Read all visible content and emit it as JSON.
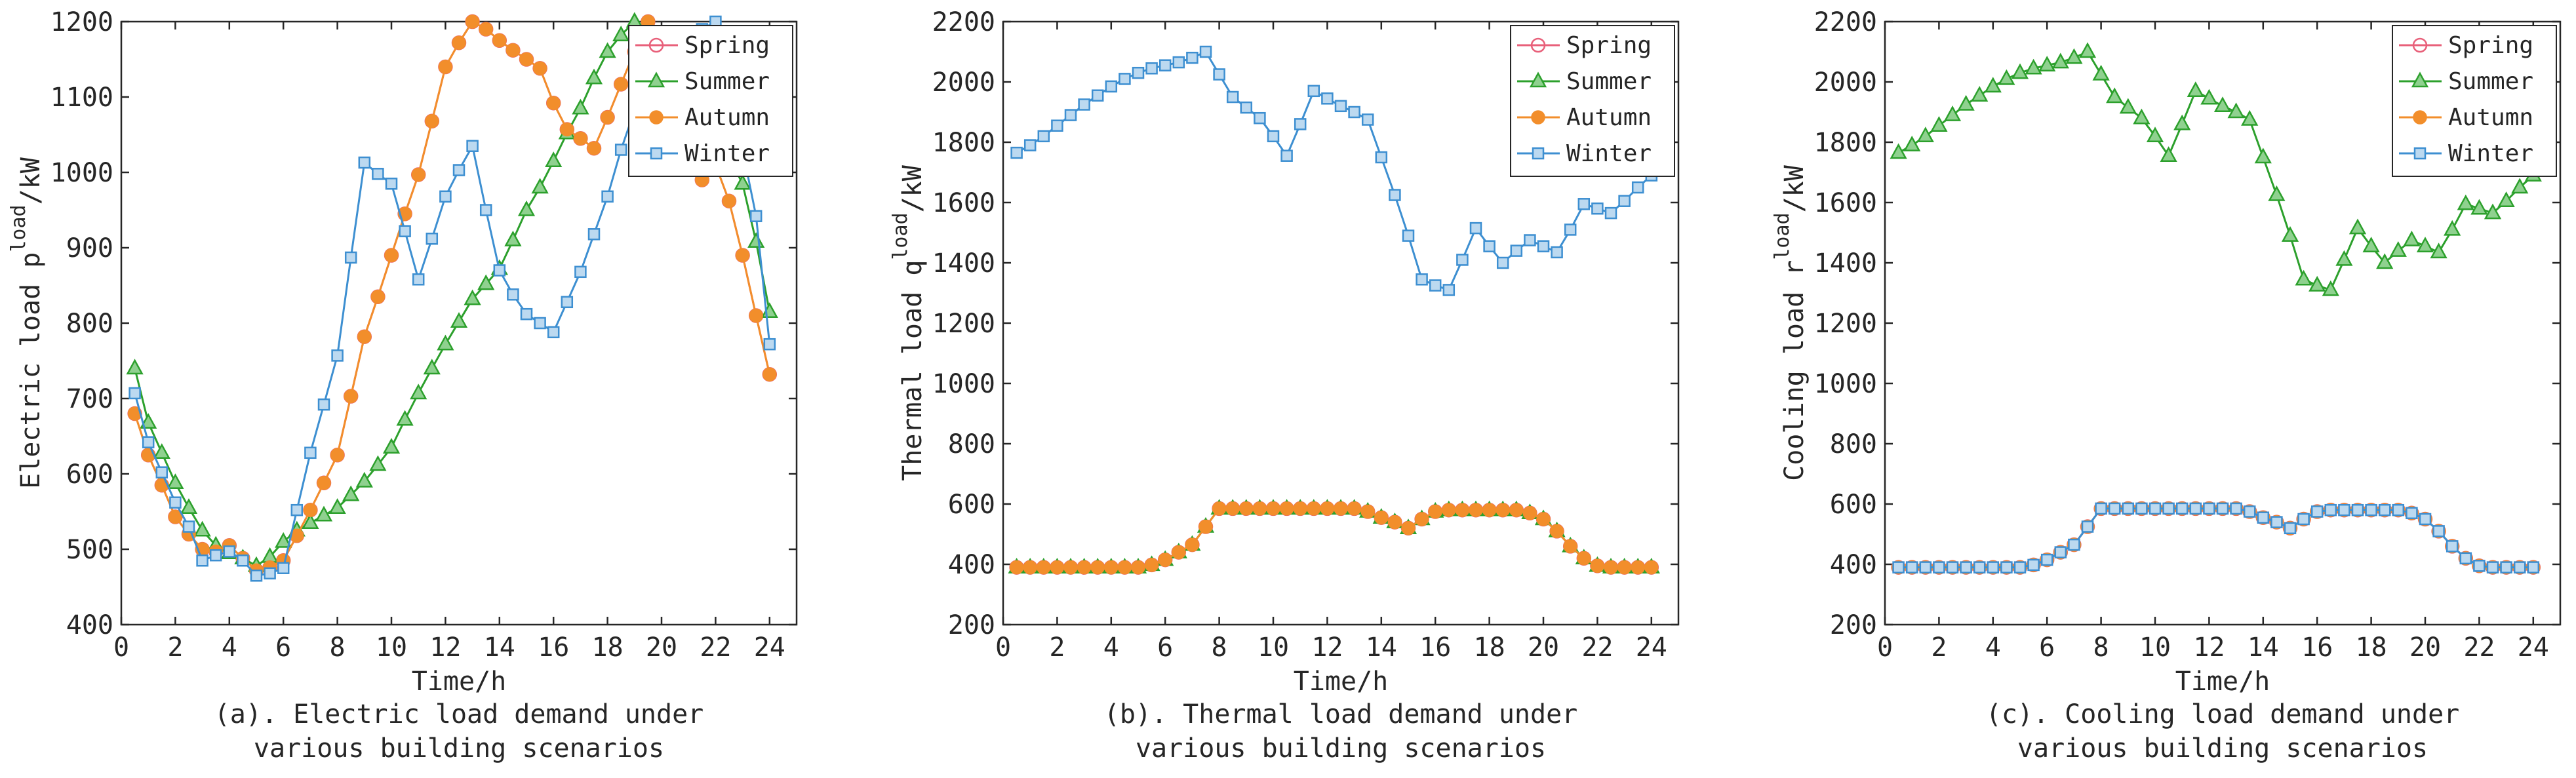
{
  "chart_data": [
    {
      "id": "a",
      "type": "line",
      "xlabel": "Time/h",
      "ylabel": "Electric load p",
      "ylabel_sup": "load",
      "ylabel_unit": "/kW",
      "xlim": [
        0,
        25
      ],
      "ylim": [
        400,
        1200
      ],
      "xticks": [
        0,
        2,
        4,
        6,
        8,
        10,
        12,
        14,
        16,
        18,
        20,
        22,
        24
      ],
      "yticks": [
        400,
        500,
        600,
        700,
        800,
        900,
        1000,
        1100,
        1200
      ],
      "caption_line1": "(a). Electric load demand under",
      "caption_line2": "various building scenarios",
      "legend_position": "top-right",
      "x": [
        0.5,
        1,
        1.5,
        2,
        2.5,
        3,
        3.5,
        4,
        4.5,
        5,
        5.5,
        6,
        6.5,
        7,
        7.5,
        8,
        8.5,
        9,
        9.5,
        10,
        10.5,
        11,
        11.5,
        12,
        12.5,
        13,
        13.5,
        14,
        14.5,
        15,
        15.5,
        16,
        16.5,
        17,
        17.5,
        18,
        18.5,
        19,
        19.5,
        20,
        20.5,
        21,
        21.5,
        22,
        22.5,
        23,
        23.5,
        24
      ],
      "series": [
        {
          "name": "Spring",
          "color": "#e8607a",
          "marker": "circle",
          "values": [
            680,
            625,
            585,
            543,
            520,
            500,
            497,
            505,
            488,
            472,
            476,
            485,
            518,
            552,
            588,
            625,
            703,
            782,
            835,
            890,
            945,
            997,
            1068,
            1140,
            1172,
            1200,
            1190,
            1175,
            1162,
            1150,
            1138,
            1092,
            1057,
            1045,
            1032,
            1073,
            1117,
            1160,
            1200,
            1130,
            1055,
            1010,
            990,
            1010,
            962,
            890,
            810,
            732
          ]
        },
        {
          "name": "Summer",
          "color": "#2ca02c",
          "marker": "triangle",
          "values": [
            740,
            668,
            628,
            588,
            555,
            525,
            505,
            495,
            488,
            478,
            490,
            510,
            525,
            535,
            545,
            555,
            572,
            590,
            612,
            635,
            672,
            707,
            740,
            772,
            802,
            832,
            852,
            872,
            910,
            950,
            980,
            1015,
            1052,
            1085,
            1125,
            1160,
            1182,
            1200,
            1185,
            1150,
            1108,
            1080,
            1052,
            1040,
            1020,
            985,
            908,
            815
          ]
        },
        {
          "name": "Autumn",
          "color": "#f28e2b",
          "marker": "star",
          "values": [
            680,
            625,
            585,
            543,
            520,
            500,
            497,
            505,
            488,
            472,
            476,
            485,
            518,
            552,
            588,
            625,
            703,
            782,
            835,
            890,
            945,
            997,
            1068,
            1140,
            1172,
            1200,
            1190,
            1175,
            1162,
            1150,
            1138,
            1092,
            1057,
            1045,
            1032,
            1073,
            1117,
            1160,
            1200,
            1130,
            1055,
            1010,
            990,
            1010,
            962,
            890,
            810,
            732
          ]
        },
        {
          "name": "Winter",
          "color": "#3d8fd1",
          "marker": "square",
          "values": [
            707,
            642,
            602,
            562,
            530,
            485,
            492,
            497,
            485,
            465,
            468,
            475,
            552,
            628,
            692,
            757,
            887,
            1013,
            998,
            985,
            922,
            858,
            912,
            968,
            1003,
            1035,
            950,
            870,
            838,
            812,
            800,
            788,
            828,
            868,
            918,
            968,
            1030,
            1082,
            1135,
            1162,
            1168,
            1175,
            1190,
            1200,
            1075,
            1030,
            942,
            772
          ]
        }
      ]
    },
    {
      "id": "b",
      "type": "line",
      "xlabel": "Time/h",
      "ylabel": "Thermal load q",
      "ylabel_sup": "load",
      "ylabel_unit": "/kW",
      "xlim": [
        0,
        25
      ],
      "ylim": [
        200,
        2200
      ],
      "xticks": [
        0,
        2,
        4,
        6,
        8,
        10,
        12,
        14,
        16,
        18,
        20,
        22,
        24
      ],
      "yticks": [
        200,
        400,
        600,
        800,
        1000,
        1200,
        1400,
        1600,
        1800,
        2000,
        2200
      ],
      "caption_line1": "(b). Thermal load demand under",
      "caption_line2": "various building scenarios",
      "legend_position": "top-right",
      "x": [
        0.5,
        1,
        1.5,
        2,
        2.5,
        3,
        3.5,
        4,
        4.5,
        5,
        5.5,
        6,
        6.5,
        7,
        7.5,
        8,
        8.5,
        9,
        9.5,
        10,
        10.5,
        11,
        11.5,
        12,
        12.5,
        13,
        13.5,
        14,
        14.5,
        15,
        15.5,
        16,
        16.5,
        17,
        17.5,
        18,
        18.5,
        19,
        19.5,
        20,
        20.5,
        21,
        21.5,
        22,
        22.5,
        23,
        23.5,
        24
      ],
      "series": [
        {
          "name": "Spring",
          "color": "#e8607a",
          "marker": "circle",
          "values": [
            390,
            390,
            390,
            390,
            390,
            390,
            390,
            390,
            390,
            390,
            398,
            415,
            440,
            465,
            525,
            585,
            585,
            585,
            585,
            585,
            585,
            585,
            585,
            585,
            585,
            585,
            575,
            555,
            540,
            520,
            550,
            575,
            580,
            580,
            580,
            580,
            580,
            580,
            570,
            550,
            510,
            460,
            420,
            395,
            390,
            390,
            390,
            390
          ]
        },
        {
          "name": "Summer",
          "color": "#2ca02c",
          "marker": "triangle",
          "values": [
            390,
            390,
            390,
            390,
            390,
            390,
            390,
            390,
            390,
            390,
            398,
            415,
            440,
            465,
            525,
            585,
            585,
            585,
            585,
            585,
            585,
            585,
            585,
            585,
            585,
            585,
            575,
            555,
            540,
            520,
            550,
            575,
            580,
            580,
            580,
            580,
            580,
            580,
            570,
            550,
            510,
            460,
            420,
            395,
            390,
            390,
            390,
            390
          ]
        },
        {
          "name": "Autumn",
          "color": "#f28e2b",
          "marker": "star",
          "values": [
            390,
            390,
            390,
            390,
            390,
            390,
            390,
            390,
            390,
            390,
            398,
            415,
            440,
            465,
            525,
            585,
            585,
            585,
            585,
            585,
            585,
            585,
            585,
            585,
            585,
            585,
            575,
            555,
            540,
            520,
            550,
            575,
            580,
            580,
            580,
            580,
            580,
            580,
            570,
            550,
            510,
            460,
            420,
            395,
            390,
            390,
            390,
            390
          ]
        },
        {
          "name": "Winter",
          "color": "#3d8fd1",
          "marker": "square",
          "values": [
            1765,
            1790,
            1820,
            1855,
            1890,
            1925,
            1955,
            1985,
            2010,
            2030,
            2045,
            2055,
            2065,
            2080,
            2100,
            2025,
            1950,
            1915,
            1880,
            1820,
            1755,
            1860,
            1970,
            1945,
            1920,
            1900,
            1875,
            1750,
            1625,
            1490,
            1345,
            1325,
            1310,
            1410,
            1515,
            1455,
            1400,
            1440,
            1475,
            1455,
            1435,
            1510,
            1595,
            1580,
            1565,
            1605,
            1650,
            1690
          ]
        }
      ]
    },
    {
      "id": "c",
      "type": "line",
      "xlabel": "Time/h",
      "ylabel": "Cooling load r",
      "ylabel_sup": "load",
      "ylabel_unit": "/kW",
      "xlim": [
        0,
        25
      ],
      "ylim": [
        200,
        2200
      ],
      "xticks": [
        0,
        2,
        4,
        6,
        8,
        10,
        12,
        14,
        16,
        18,
        20,
        22,
        24
      ],
      "yticks": [
        200,
        400,
        600,
        800,
        1000,
        1200,
        1400,
        1600,
        1800,
        2000,
        2200
      ],
      "caption_line1": "(c). Cooling load demand under",
      "caption_line2": "various building scenarios",
      "legend_position": "top-right",
      "x": [
        0.5,
        1,
        1.5,
        2,
        2.5,
        3,
        3.5,
        4,
        4.5,
        5,
        5.5,
        6,
        6.5,
        7,
        7.5,
        8,
        8.5,
        9,
        9.5,
        10,
        10.5,
        11,
        11.5,
        12,
        12.5,
        13,
        13.5,
        14,
        14.5,
        15,
        15.5,
        16,
        16.5,
        17,
        17.5,
        18,
        18.5,
        19,
        19.5,
        20,
        20.5,
        21,
        21.5,
        22,
        22.5,
        23,
        23.5,
        24
      ],
      "series": [
        {
          "name": "Spring",
          "color": "#e8607a",
          "marker": "circle",
          "values": [
            390,
            390,
            390,
            390,
            390,
            390,
            390,
            390,
            390,
            390,
            398,
            415,
            440,
            465,
            525,
            585,
            585,
            585,
            585,
            585,
            585,
            585,
            585,
            585,
            585,
            585,
            575,
            555,
            540,
            520,
            550,
            575,
            580,
            580,
            580,
            580,
            580,
            580,
            570,
            550,
            510,
            460,
            420,
            395,
            390,
            390,
            390,
            390
          ]
        },
        {
          "name": "Summer",
          "color": "#2ca02c",
          "marker": "triangle",
          "values": [
            1765,
            1790,
            1820,
            1855,
            1890,
            1925,
            1955,
            1985,
            2010,
            2030,
            2045,
            2055,
            2065,
            2080,
            2100,
            2025,
            1950,
            1915,
            1880,
            1820,
            1755,
            1860,
            1970,
            1945,
            1920,
            1900,
            1875,
            1750,
            1625,
            1490,
            1345,
            1325,
            1310,
            1410,
            1515,
            1455,
            1400,
            1440,
            1475,
            1455,
            1435,
            1510,
            1595,
            1580,
            1565,
            1605,
            1650,
            1690
          ]
        },
        {
          "name": "Autumn",
          "color": "#f28e2b",
          "marker": "star",
          "values": [
            390,
            390,
            390,
            390,
            390,
            390,
            390,
            390,
            390,
            390,
            398,
            415,
            440,
            465,
            525,
            585,
            585,
            585,
            585,
            585,
            585,
            585,
            585,
            585,
            585,
            585,
            575,
            555,
            540,
            520,
            550,
            575,
            580,
            580,
            580,
            580,
            580,
            580,
            570,
            550,
            510,
            460,
            420,
            395,
            390,
            390,
            390,
            390
          ]
        },
        {
          "name": "Winter",
          "color": "#3d8fd1",
          "marker": "square",
          "values": [
            390,
            390,
            390,
            390,
            390,
            390,
            390,
            390,
            390,
            390,
            398,
            415,
            440,
            465,
            525,
            585,
            585,
            585,
            585,
            585,
            585,
            585,
            585,
            585,
            585,
            585,
            575,
            555,
            540,
            520,
            550,
            575,
            580,
            580,
            580,
            580,
            580,
            580,
            570,
            550,
            510,
            460,
            420,
            395,
            390,
            390,
            390,
            390
          ]
        }
      ]
    }
  ]
}
